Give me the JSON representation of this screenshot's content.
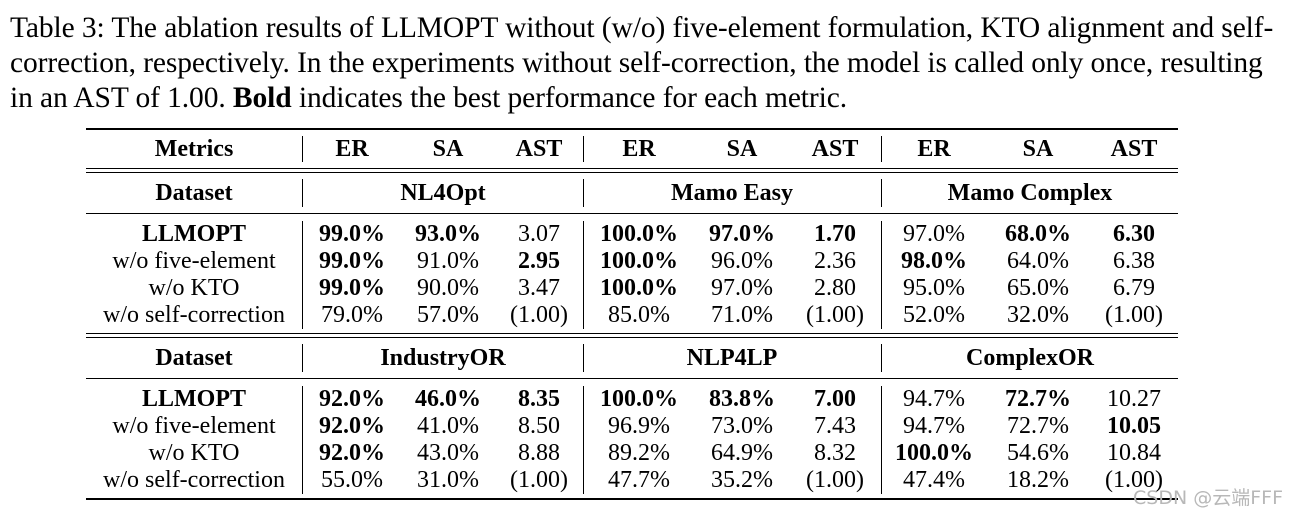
{
  "caption": {
    "prefix": "Table 3: The ablation results of LLMOPT without (w/o) five-element formulation, KTO alignment and self-correction, respectively. In the experiments without self-correction, the model is called only once, resulting in an AST of 1.00.",
    "bold_word": "Bold",
    "suffix": "indicates the best performance for each metric."
  },
  "table": {
    "header": [
      "Metrics",
      "ER",
      "SA",
      "AST",
      "ER",
      "SA",
      "AST",
      "ER",
      "SA",
      "AST"
    ],
    "dataset_label": "Dataset",
    "blocks": [
      {
        "datasets": [
          "NL4Opt",
          "Mamo Easy",
          "Mamo Complex"
        ],
        "rows": [
          {
            "label": "LLMOPT",
            "label_bold": true,
            "cells": [
              "99.0%",
              "93.0%",
              "3.07",
              "100.0%",
              "97.0%",
              "1.70",
              "97.0%",
              "68.0%",
              "6.30"
            ],
            "bold": [
              true,
              true,
              false,
              true,
              true,
              true,
              false,
              true,
              true
            ]
          },
          {
            "label": "w/o five-element",
            "label_bold": false,
            "cells": [
              "99.0%",
              "91.0%",
              "2.95",
              "100.0%",
              "96.0%",
              "2.36",
              "98.0%",
              "64.0%",
              "6.38"
            ],
            "bold": [
              true,
              false,
              true,
              true,
              false,
              false,
              true,
              false,
              false
            ]
          },
          {
            "label": "w/o KTO",
            "label_bold": false,
            "cells": [
              "99.0%",
              "90.0%",
              "3.47",
              "100.0%",
              "97.0%",
              "2.80",
              "95.0%",
              "65.0%",
              "6.79"
            ],
            "bold": [
              true,
              false,
              false,
              true,
              false,
              false,
              false,
              false,
              false
            ]
          },
          {
            "label": "w/o self-correction",
            "label_bold": false,
            "cells": [
              "79.0%",
              "57.0%",
              "(1.00)",
              "85.0%",
              "71.0%",
              "(1.00)",
              "52.0%",
              "32.0%",
              "(1.00)"
            ],
            "bold": [
              false,
              false,
              false,
              false,
              false,
              false,
              false,
              false,
              false
            ]
          }
        ]
      },
      {
        "datasets": [
          "IndustryOR",
          "NLP4LP",
          "ComplexOR"
        ],
        "rows": [
          {
            "label": "LLMOPT",
            "label_bold": true,
            "cells": [
              "92.0%",
              "46.0%",
              "8.35",
              "100.0%",
              "83.8%",
              "7.00",
              "94.7%",
              "72.7%",
              "10.27"
            ],
            "bold": [
              true,
              true,
              true,
              true,
              true,
              true,
              false,
              true,
              false
            ]
          },
          {
            "label": "w/o five-element",
            "label_bold": false,
            "cells": [
              "92.0%",
              "41.0%",
              "8.50",
              "96.9%",
              "73.0%",
              "7.43",
              "94.7%",
              "72.7%",
              "10.05"
            ],
            "bold": [
              true,
              false,
              false,
              false,
              false,
              false,
              false,
              false,
              true
            ]
          },
          {
            "label": "w/o KTO",
            "label_bold": false,
            "cells": [
              "92.0%",
              "43.0%",
              "8.88",
              "89.2%",
              "64.9%",
              "8.32",
              "100.0%",
              "54.6%",
              "10.84"
            ],
            "bold": [
              true,
              false,
              false,
              false,
              false,
              false,
              true,
              false,
              false
            ]
          },
          {
            "label": "w/o self-correction",
            "label_bold": false,
            "cells": [
              "55.0%",
              "31.0%",
              "(1.00)",
              "47.7%",
              "35.2%",
              "(1.00)",
              "47.4%",
              "18.2%",
              "(1.00)"
            ],
            "bold": [
              false,
              false,
              false,
              false,
              false,
              false,
              false,
              false,
              false
            ]
          }
        ]
      }
    ]
  },
  "watermark": "CSDN @云端FFF"
}
